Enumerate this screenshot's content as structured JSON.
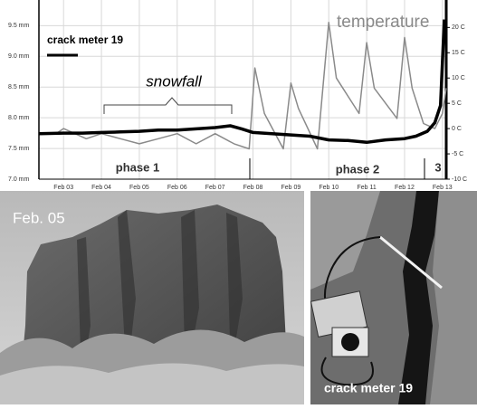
{
  "chart_data": {
    "type": "line",
    "xlim": [
      2.35,
      13.1
    ],
    "xticks": [
      {
        "value": 3,
        "label": "Feb 03"
      },
      {
        "value": 4,
        "label": "Feb 04"
      },
      {
        "value": 5,
        "label": "Feb 05"
      },
      {
        "value": 6,
        "label": "Feb 06"
      },
      {
        "value": 7,
        "label": "Feb 07"
      },
      {
        "value": 8,
        "label": "Feb 08"
      },
      {
        "value": 9,
        "label": "Feb 09"
      },
      {
        "value": 10,
        "label": "Feb 10"
      },
      {
        "value": 11,
        "label": "Feb 11"
      },
      {
        "value": 12,
        "label": "Feb 12"
      },
      {
        "value": 13,
        "label": "Feb 13"
      }
    ],
    "ylim": [
      7.0,
      9.8
    ],
    "yticks": [
      {
        "value": 7.0,
        "label": "7.0 mm"
      },
      {
        "value": 7.5,
        "label": "7.5 mm"
      },
      {
        "value": 8.0,
        "label": "8.0 mm"
      },
      {
        "value": 8.5,
        "label": "8.5 mm"
      },
      {
        "value": 9.0,
        "label": "9.0 mm"
      },
      {
        "value": 9.5,
        "label": "9.5 mm"
      }
    ],
    "y2lim": [
      -10,
      24
    ],
    "y2ticks": [
      {
        "value": -10,
        "label": "-10 C"
      },
      {
        "value": -5,
        "label": "-5 C"
      },
      {
        "value": 0,
        "label": "0 C"
      },
      {
        "value": 5,
        "label": "5 C"
      },
      {
        "value": 10,
        "label": "10 C"
      },
      {
        "value": 15,
        "label": "15 C"
      },
      {
        "value": 20,
        "label": "20 C"
      }
    ],
    "grid": true,
    "series": [
      {
        "name": "crack meter 19",
        "color": "#000000",
        "axis": "y",
        "x": [
          2.35,
          3,
          3.5,
          4,
          4.5,
          5,
          5.5,
          6,
          6.5,
          7,
          7.4,
          7.7,
          8,
          8.5,
          9,
          9.5,
          10,
          10.5,
          11,
          11.5,
          12,
          12.3,
          12.6,
          12.8,
          12.95,
          13.05
        ],
        "values": [
          7.74,
          7.75,
          7.75,
          7.76,
          7.77,
          7.78,
          7.8,
          7.8,
          7.82,
          7.84,
          7.87,
          7.82,
          7.76,
          7.74,
          7.72,
          7.7,
          7.64,
          7.63,
          7.6,
          7.64,
          7.66,
          7.7,
          7.78,
          7.92,
          8.2,
          9.6
        ]
      },
      {
        "name": "temperature",
        "color": "#8a8a8a",
        "axis": "y2",
        "x": [
          2.35,
          2.8,
          3.0,
          3.3,
          3.6,
          4,
          4.5,
          5,
          5.5,
          6,
          6.5,
          7,
          7.5,
          7.9,
          8.05,
          8.3,
          8.8,
          9.0,
          9.2,
          9.7,
          10.0,
          10.2,
          10.8,
          11.0,
          11.2,
          11.8,
          12.0,
          12.2,
          12.5,
          12.8,
          13.0,
          13.1
        ],
        "values": [
          -1,
          -1,
          0,
          -1,
          -2,
          -1,
          -2,
          -3,
          -2,
          -1,
          -3,
          -1,
          -3,
          -4,
          12,
          3,
          -4,
          9,
          4,
          -4,
          21,
          10,
          3,
          17,
          8,
          2,
          18,
          8,
          1,
          0,
          3,
          8
        ]
      }
    ],
    "annotations": [
      "snowfall",
      "phase 1",
      "phase 2",
      "3"
    ]
  },
  "photos": {
    "left_label": "Feb. 05",
    "right_label": "crack meter 19"
  }
}
